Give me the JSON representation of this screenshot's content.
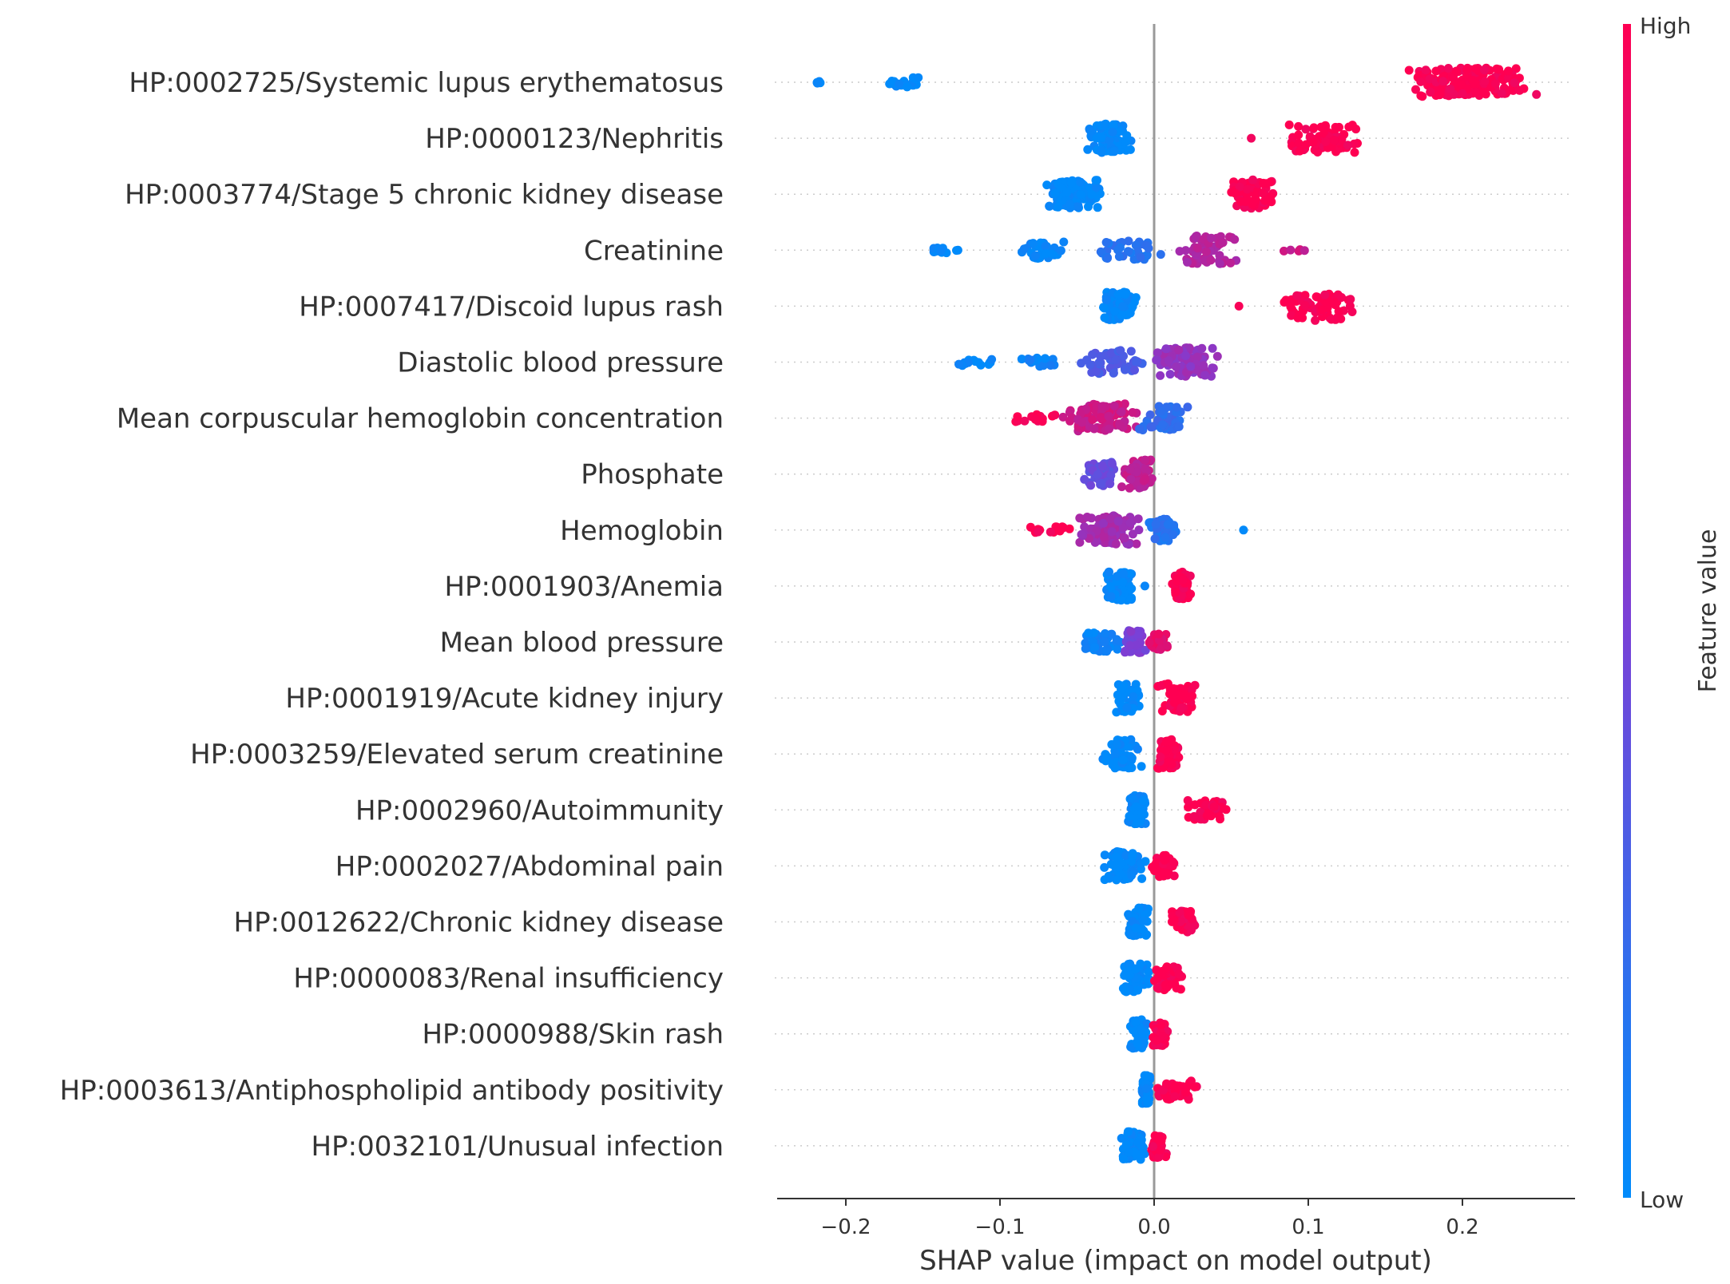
{
  "chart_data": {
    "type": "scatter",
    "subtype": "shap-beeswarm",
    "title": "",
    "xlabel": "SHAP value (impact on model output)",
    "xlim": [
      -0.245,
      0.27
    ],
    "xticks": [
      -0.2,
      -0.1,
      0.0,
      0.1,
      0.2
    ],
    "xtick_labels": [
      "−0.2",
      "−0.1",
      "0.0",
      "0.1",
      "0.2"
    ],
    "zero_line": 0.0,
    "colorbar": {
      "label": "Feature value",
      "high": "High",
      "low": "Low",
      "high_color": "#ff0052",
      "low_color": "#008bfb"
    },
    "features": [
      {
        "name": "HP:0002725/Systemic lupus erythematosus",
        "clusters": [
          {
            "min": -0.222,
            "max": -0.215,
            "fv": 0.0,
            "n": 5
          },
          {
            "min": -0.178,
            "max": -0.145,
            "fv": 0.0,
            "n": 20
          },
          {
            "min": 0.162,
            "max": 0.25,
            "fv": 1.0,
            "n": 180
          }
        ]
      },
      {
        "name": "HP:0000123/Nephritis",
        "clusters": [
          {
            "min": -0.044,
            "max": -0.014,
            "fv": 0.0,
            "n": 90
          },
          {
            "min": 0.063,
            "max": 0.063,
            "fv": 1.0,
            "n": 1
          },
          {
            "min": 0.085,
            "max": 0.137,
            "fv": 1.0,
            "n": 70
          }
        ]
      },
      {
        "name": "HP:0003774/Stage 5 chronic kidney disease",
        "clusters": [
          {
            "min": -0.07,
            "max": -0.033,
            "fv": 0.0,
            "n": 110
          },
          {
            "min": 0.048,
            "max": 0.08,
            "fv": 1.0,
            "n": 70
          }
        ]
      },
      {
        "name": "Creatinine",
        "clusters": [
          {
            "min": -0.154,
            "max": -0.125,
            "fv": 0.0,
            "n": 12
          },
          {
            "min": -0.088,
            "max": -0.058,
            "fv": 0.02,
            "n": 35
          },
          {
            "min": -0.048,
            "max": 0.01,
            "fv": 0.15,
            "n": 40
          },
          {
            "min": 0.01,
            "max": 0.055,
            "fv": 0.7,
            "n": 60
          },
          {
            "min": 0.068,
            "max": 0.113,
            "fv": 0.8,
            "n": 5
          }
        ]
      },
      {
        "name": "HP:0007417/Discoid lupus rash",
        "clusters": [
          {
            "min": -0.035,
            "max": -0.01,
            "fv": 0.0,
            "n": 80
          },
          {
            "min": 0.055,
            "max": 0.055,
            "fv": 1.0,
            "n": 1
          },
          {
            "min": 0.078,
            "max": 0.133,
            "fv": 1.0,
            "n": 65
          }
        ]
      },
      {
        "name": "Diastolic blood pressure",
        "clusters": [
          {
            "min": -0.133,
            "max": -0.1,
            "fv": 0.0,
            "n": 14
          },
          {
            "min": -0.09,
            "max": -0.06,
            "fv": 0.05,
            "n": 18
          },
          {
            "min": -0.05,
            "max": 0.0,
            "fv": 0.3,
            "n": 50
          },
          {
            "min": 0.0,
            "max": 0.043,
            "fv": 0.6,
            "n": 90
          }
        ]
      },
      {
        "name": "Mean corpuscular hemoglobin concentration",
        "clusters": [
          {
            "min": -0.093,
            "max": -0.06,
            "fv": 1.0,
            "n": 15
          },
          {
            "min": -0.06,
            "max": -0.01,
            "fv": 0.8,
            "n": 90
          },
          {
            "min": -0.01,
            "max": 0.024,
            "fv": 0.2,
            "n": 50
          }
        ]
      },
      {
        "name": "Phosphate",
        "clusters": [
          {
            "min": -0.046,
            "max": -0.022,
            "fv": 0.4,
            "n": 50
          },
          {
            "min": -0.022,
            "max": 0.001,
            "fv": 0.75,
            "n": 60
          }
        ]
      },
      {
        "name": "Hemoglobin",
        "clusters": [
          {
            "min": -0.083,
            "max": -0.05,
            "fv": 1.0,
            "n": 14
          },
          {
            "min": -0.05,
            "max": -0.005,
            "fv": 0.65,
            "n": 100
          },
          {
            "min": -0.005,
            "max": 0.015,
            "fv": 0.15,
            "n": 50
          },
          {
            "min": 0.058,
            "max": 0.058,
            "fv": 0.0,
            "n": 1
          }
        ]
      },
      {
        "name": "HP:0001903/Anemia",
        "clusters": [
          {
            "min": -0.033,
            "max": -0.012,
            "fv": 0.0,
            "n": 70
          },
          {
            "min": -0.006,
            "max": -0.006,
            "fv": 0.0,
            "n": 1
          },
          {
            "min": 0.01,
            "max": 0.025,
            "fv": 1.0,
            "n": 70
          }
        ]
      },
      {
        "name": "Mean blood pressure",
        "clusters": [
          {
            "min": -0.052,
            "max": -0.02,
            "fv": 0.05,
            "n": 40
          },
          {
            "min": -0.02,
            "max": -0.005,
            "fv": 0.5,
            "n": 50
          },
          {
            "min": -0.005,
            "max": 0.013,
            "fv": 0.9,
            "n": 35
          }
        ]
      },
      {
        "name": "HP:0001919/Acute kidney injury",
        "clusters": [
          {
            "min": -0.027,
            "max": -0.008,
            "fv": 0.0,
            "n": 70
          },
          {
            "min": 0.002,
            "max": 0.03,
            "fv": 1.0,
            "n": 60
          }
        ]
      },
      {
        "name": "HP:0003259/Elevated serum creatinine",
        "clusters": [
          {
            "min": -0.038,
            "max": -0.008,
            "fv": 0.0,
            "n": 60
          },
          {
            "min": 0.002,
            "max": 0.017,
            "fv": 1.0,
            "n": 70
          }
        ]
      },
      {
        "name": "HP:0002960/Autoimmunity",
        "clusters": [
          {
            "min": -0.018,
            "max": -0.004,
            "fv": 0.0,
            "n": 70
          },
          {
            "min": 0.02,
            "max": 0.047,
            "fv": 1.0,
            "n": 40
          }
        ]
      },
      {
        "name": "HP:0002027/Abdominal pain",
        "clusters": [
          {
            "min": -0.034,
            "max": -0.004,
            "fv": 0.0,
            "n": 70
          },
          {
            "min": -0.002,
            "max": 0.015,
            "fv": 1.0,
            "n": 45
          }
        ]
      },
      {
        "name": "HP:0012622/Chronic kidney disease",
        "clusters": [
          {
            "min": -0.018,
            "max": -0.003,
            "fv": 0.0,
            "n": 70
          },
          {
            "min": 0.01,
            "max": 0.028,
            "fv": 1.0,
            "n": 45
          }
        ]
      },
      {
        "name": "HP:0000083/Renal insufficiency",
        "clusters": [
          {
            "min": -0.023,
            "max": -0.002,
            "fv": 0.0,
            "n": 60
          },
          {
            "min": -0.002,
            "max": 0.02,
            "fv": 1.0,
            "n": 50
          }
        ]
      },
      {
        "name": "HP:0000988/Skin rash",
        "clusters": [
          {
            "min": -0.018,
            "max": -0.002,
            "fv": 0.0,
            "n": 60
          },
          {
            "min": -0.002,
            "max": 0.011,
            "fv": 1.0,
            "n": 50
          }
        ]
      },
      {
        "name": "HP:0003613/Antiphospholipid antibody positivity",
        "clusters": [
          {
            "min": -0.008,
            "max": -0.002,
            "fv": 0.0,
            "n": 60
          },
          {
            "min": -0.002,
            "max": 0.03,
            "fv": 1.0,
            "n": 40
          }
        ]
      },
      {
        "name": "HP:0032101/Unusual infection",
        "clusters": [
          {
            "min": -0.022,
            "max": -0.005,
            "fv": 0.0,
            "n": 60
          },
          {
            "min": -0.003,
            "max": 0.008,
            "fv": 1.0,
            "n": 50
          }
        ]
      }
    ]
  }
}
